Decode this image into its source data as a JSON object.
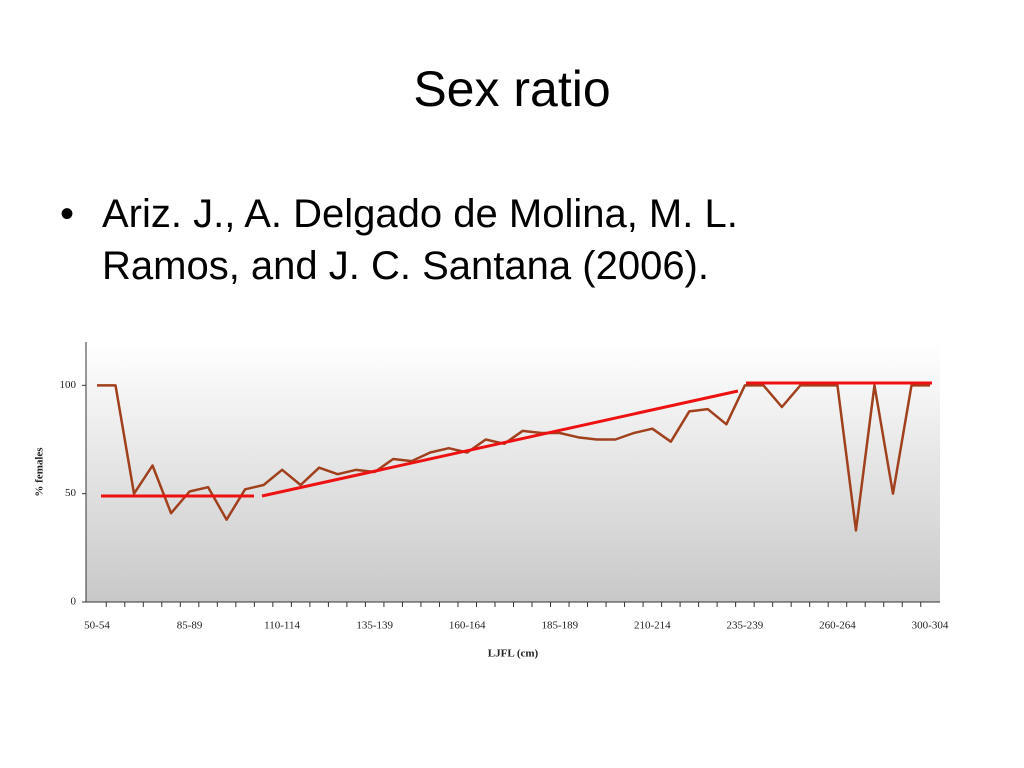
{
  "slide": {
    "title": "Sex ratio",
    "bullet": "Ariz. J., A. Delgado de Molina, M. L. Ramos, and J. C. Santana (2006)."
  },
  "chart_data": {
    "type": "line",
    "x_label": "LJFL (cm)",
    "y_label": "% females",
    "categories": [
      "50-54",
      null,
      null,
      null,
      null,
      "85-89",
      null,
      null,
      null,
      null,
      "110-114",
      null,
      null,
      null,
      null,
      "135-139",
      null,
      null,
      null,
      null,
      "160-164",
      null,
      null,
      null,
      null,
      "185-189",
      null,
      null,
      null,
      null,
      "210-214",
      null,
      null,
      null,
      null,
      "235-239",
      null,
      null,
      null,
      null,
      "260-264",
      null,
      null,
      null,
      null,
      "300-304"
    ],
    "series": [
      {
        "color": "#a0401c",
        "values": [
          100,
          100,
          50,
          63,
          41,
          51,
          53,
          38,
          52,
          54,
          61,
          54,
          62,
          59,
          61,
          60,
          66,
          65,
          69,
          71,
          69,
          75,
          73,
          79,
          78,
          78,
          76,
          75,
          75,
          78,
          80,
          74,
          88,
          89,
          82,
          100,
          100,
          90,
          100,
          100,
          100,
          33,
          100,
          50,
          100,
          100
        ]
      }
    ],
    "ylim": [
      0,
      120
    ],
    "yticks": [
      0,
      50,
      100
    ]
  }
}
